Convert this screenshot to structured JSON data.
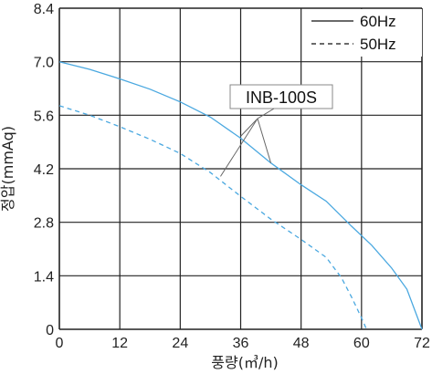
{
  "chart_data": {
    "type": "line",
    "title": "",
    "xlabel": "풍량(㎥/h)",
    "ylabel": "정압(mmAq)",
    "xlim": [
      0,
      72
    ],
    "ylim": [
      0,
      8.4
    ],
    "x_ticks": [
      "0",
      "12",
      "24",
      "36",
      "48",
      "60",
      "72"
    ],
    "y_ticks": [
      "0",
      "1.4",
      "2.8",
      "4.2",
      "5.6",
      "7.0",
      "8.4"
    ],
    "grid": true,
    "legend_position": "top-right",
    "series": [
      {
        "name": "60Hz",
        "style": "solid",
        "color": "#4aa8e0",
        "x": [
          0,
          6,
          12,
          18,
          24,
          30,
          36,
          42,
          48,
          53,
          58,
          62,
          66,
          69,
          72
        ],
        "y": [
          7.0,
          6.8,
          6.55,
          6.28,
          5.95,
          5.55,
          5.0,
          4.35,
          3.78,
          3.35,
          2.7,
          2.2,
          1.6,
          1.05,
          0
        ]
      },
      {
        "name": "50Hz",
        "style": "dashed",
        "color": "#4aa8e0",
        "x": [
          0,
          6,
          12,
          18,
          24,
          30,
          36,
          42,
          48,
          53,
          56,
          58,
          60,
          61
        ],
        "y": [
          5.85,
          5.6,
          5.3,
          4.97,
          4.6,
          4.1,
          3.48,
          2.88,
          2.35,
          1.88,
          1.35,
          0.85,
          0.3,
          0
        ]
      }
    ],
    "annotation": {
      "text": "INB-100S",
      "pointer_targets": [
        {
          "x": 36,
          "y": 5.05
        },
        {
          "x": 42,
          "y": 4.35
        },
        {
          "x": 32,
          "y": 4.0
        }
      ]
    }
  }
}
